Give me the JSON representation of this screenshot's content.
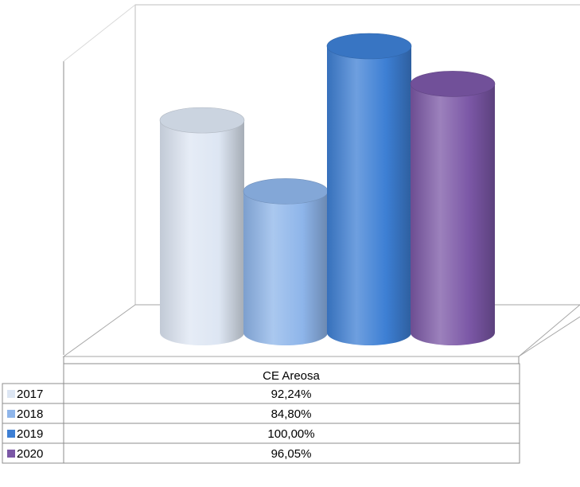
{
  "chart_data": {
    "type": "bar",
    "style": "3d-cylinder",
    "categories": [
      "CE Areosa"
    ],
    "series": [
      {
        "name": "2017",
        "values": [
          92.24
        ],
        "label": "92,24%",
        "color": "#dde6f3"
      },
      {
        "name": "2018",
        "values": [
          84.8
        ],
        "label": "84,80%",
        "color": "#8eb5ea"
      },
      {
        "name": "2019",
        "values": [
          100.0
        ],
        "label": "100,00%",
        "color": "#3d7fd4"
      },
      {
        "name": "2020",
        "values": [
          96.05
        ],
        "label": "96,05%",
        "color": "#7b57a6"
      }
    ],
    "title": "",
    "xlabel": "",
    "ylabel": "",
    "ylim": [
      70,
      100
    ],
    "grid": false,
    "legend": "data-table"
  }
}
